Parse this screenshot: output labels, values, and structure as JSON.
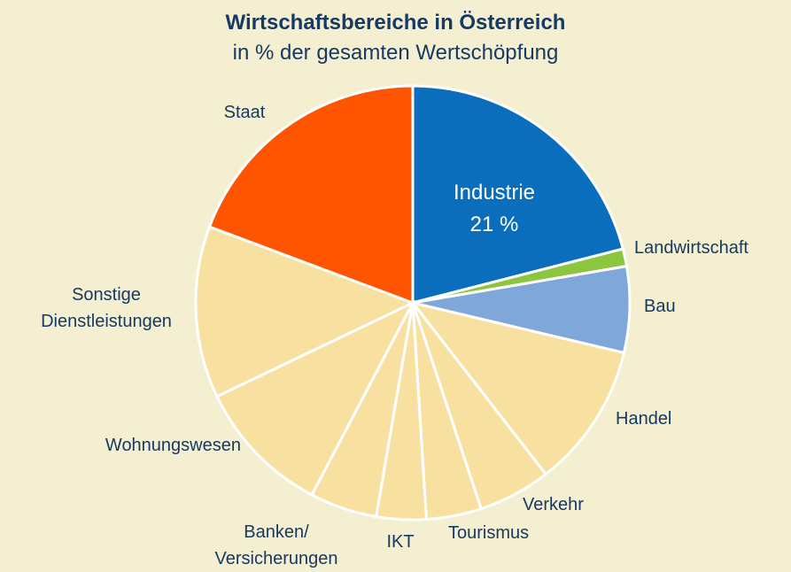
{
  "chart_data": {
    "type": "pie",
    "title": "Wirtschaftsbereiche in Österreich",
    "subtitle": "in % der gesamten Wertschöpfung",
    "categories": [
      "Industrie",
      "Landwirtschaft",
      "Bau",
      "Handel",
      "Verkehr",
      "Tourismus",
      "IKT",
      "Banken/\nVersicherungen",
      "Wohnungswesen",
      "Sonstige\nDienstleistungen",
      "Staat"
    ],
    "values": [
      21,
      1.3,
      6.4,
      10.8,
      5.4,
      4.1,
      3.7,
      5,
      10.2,
      12.8,
      19.3
    ],
    "value_labels": [
      "21 %",
      null,
      null,
      null,
      null,
      null,
      null,
      null,
      null,
      null,
      null
    ],
    "colors": [
      "#0a6ebd",
      "#8cc63e",
      "#7fa7da",
      "#f8e1a0",
      "#f8e1a0",
      "#f8e1a0",
      "#f8e1a0",
      "#f8e1a0",
      "#f8e1a0",
      "#f8e1a0",
      "#ff5400"
    ]
  }
}
